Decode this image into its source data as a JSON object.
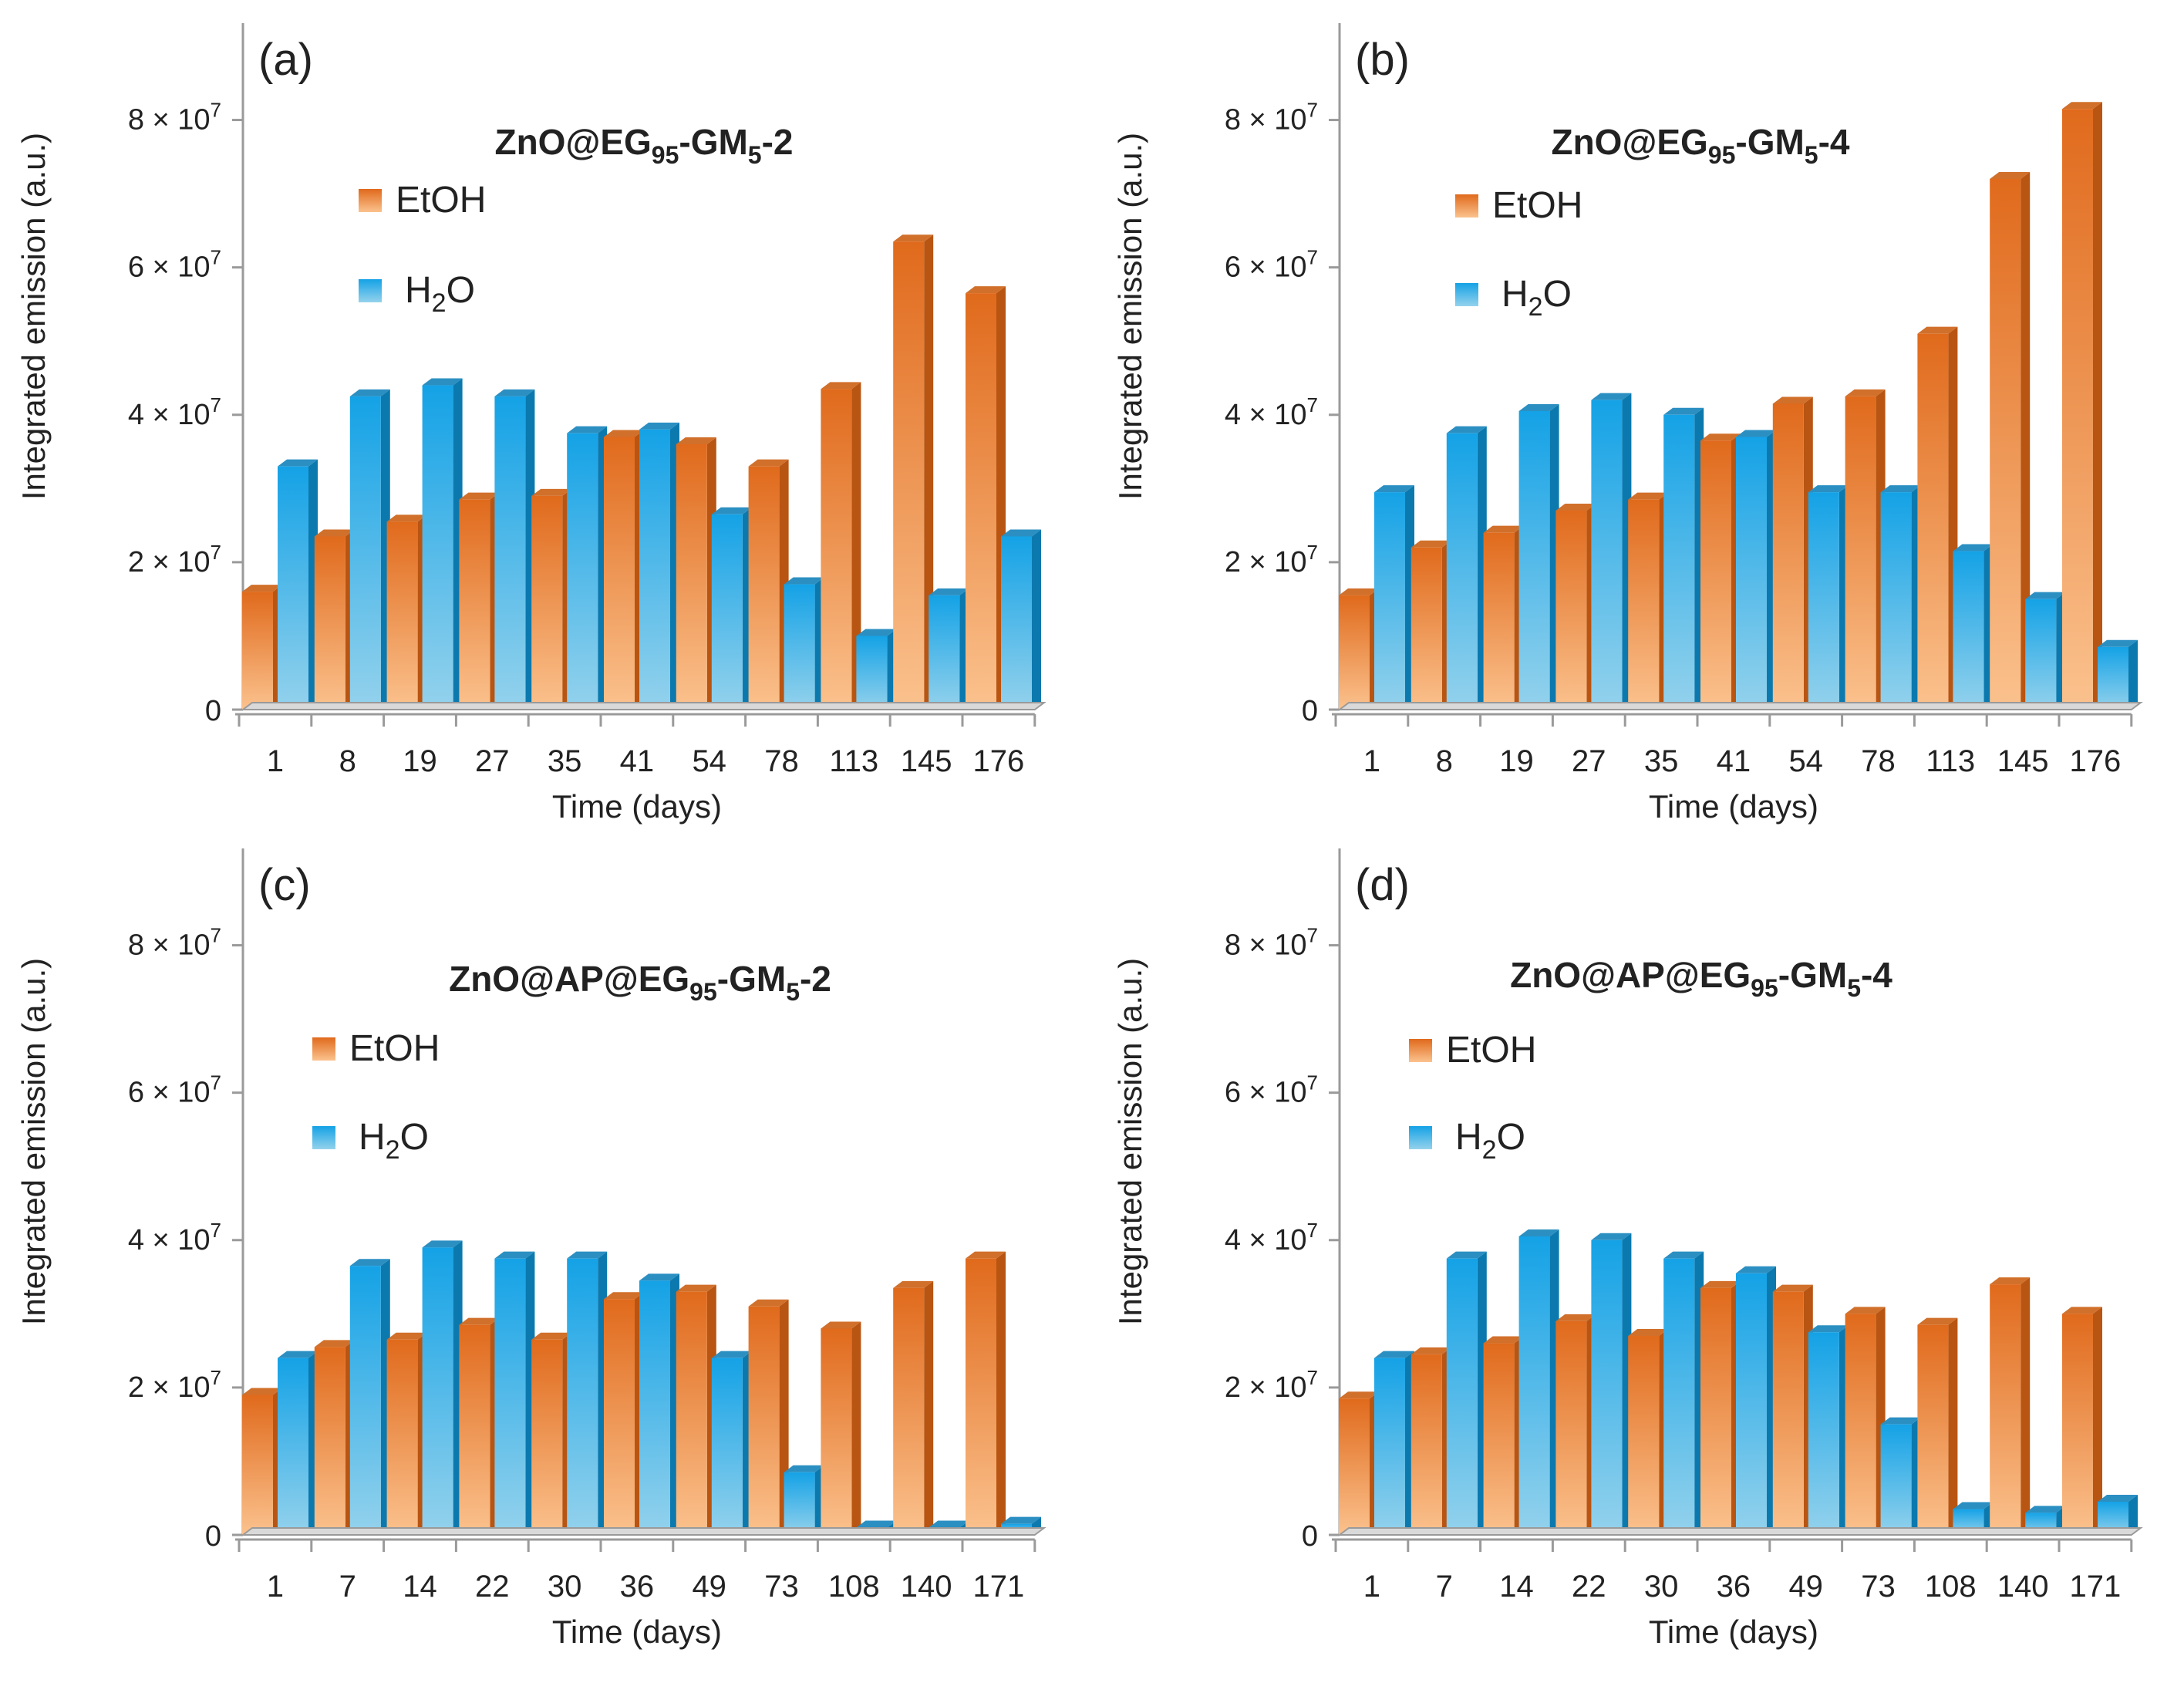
{
  "colors": {
    "etoh_top": "#e06a1c",
    "etoh_bottom": "#fbc28e",
    "etoh_side": "#b85512",
    "etoh_cap": "#d1702b",
    "h2o_top": "#14a2e6",
    "h2o_bottom": "#94d2ec",
    "h2o_side": "#0c79ae",
    "h2o_cap": "#2b8fc2",
    "axis": "#9a9a9a"
  },
  "chart_data": [
    {
      "type": "bar",
      "panel_label": "(a)",
      "title": {
        "prefix": "ZnO@EG",
        "sub1": "95",
        "mid": "-GM",
        "sub2": "5",
        "suffix": "-2"
      },
      "xlabel": "Time (days)",
      "ylabel": "Integrated emission (a.u.)",
      "ylim": [
        0,
        90000000
      ],
      "yticks": [
        {
          "value": 0,
          "label": "0"
        },
        {
          "value": 20000000,
          "coef": "2 × 10",
          "exp": "7"
        },
        {
          "value": 40000000,
          "coef": "4 × 10",
          "exp": "7"
        },
        {
          "value": 60000000,
          "coef": "6 × 10",
          "exp": "7"
        },
        {
          "value": 80000000,
          "coef": "8 × 10",
          "exp": "7"
        }
      ],
      "legend": {
        "etoh": "EtOH",
        "h2o_base": "H",
        "h2o_sub": "2",
        "h2o_tail": "O"
      },
      "categories": [
        "1",
        "8",
        "19",
        "27",
        "35",
        "41",
        "54",
        "78",
        "113",
        "145",
        "176"
      ],
      "series": [
        {
          "name": "EtOH",
          "values": [
            16000000,
            23500000,
            25500000,
            28500000,
            29000000,
            37000000,
            36000000,
            33000000,
            43500000,
            63500000,
            56500000
          ]
        },
        {
          "name": "H2O",
          "values": [
            33000000,
            42500000,
            44000000,
            42500000,
            37500000,
            38000000,
            26500000,
            17000000,
            10000000,
            15500000,
            23500000
          ]
        }
      ]
    },
    {
      "type": "bar",
      "panel_label": "(b)",
      "title": {
        "prefix": "ZnO@EG",
        "sub1": "95",
        "mid": "-GM",
        "sub2": "5",
        "suffix": "-4"
      },
      "xlabel": "Time (days)",
      "ylabel": "Integrated emission (a.u.)",
      "ylim": [
        0,
        90000000
      ],
      "yticks": [
        {
          "value": 0,
          "label": "0"
        },
        {
          "value": 20000000,
          "coef": "2 × 10",
          "exp": "7"
        },
        {
          "value": 40000000,
          "coef": "4 × 10",
          "exp": "7"
        },
        {
          "value": 60000000,
          "coef": "6 × 10",
          "exp": "7"
        },
        {
          "value": 80000000,
          "coef": "8 × 10",
          "exp": "7"
        }
      ],
      "legend": {
        "etoh": "EtOH",
        "h2o_base": "H",
        "h2o_sub": "2",
        "h2o_tail": "O"
      },
      "categories": [
        "1",
        "8",
        "19",
        "27",
        "35",
        "41",
        "54",
        "78",
        "113",
        "145",
        "176"
      ],
      "series": [
        {
          "name": "EtOH",
          "values": [
            15500000,
            22000000,
            24000000,
            27000000,
            28500000,
            36500000,
            41500000,
            42500000,
            51000000,
            72000000,
            81500000
          ]
        },
        {
          "name": "H2O",
          "values": [
            29500000,
            37500000,
            40500000,
            42000000,
            40000000,
            37000000,
            29500000,
            29500000,
            21500000,
            15000000,
            8500000
          ]
        }
      ]
    },
    {
      "type": "bar",
      "panel_label": "(c)",
      "title": {
        "prefix": "ZnO@AP@EG",
        "sub1": "95",
        "mid": "-GM",
        "sub2": "5",
        "suffix": "-2"
      },
      "xlabel": "Time (days)",
      "ylabel": "Integrated emission (a.u.)",
      "ylim": [
        0,
        90000000
      ],
      "yticks": [
        {
          "value": 0,
          "label": "0"
        },
        {
          "value": 20000000,
          "coef": "2 × 10",
          "exp": "7"
        },
        {
          "value": 40000000,
          "coef": "4 × 10",
          "exp": "7"
        },
        {
          "value": 60000000,
          "coef": "6 × 10",
          "exp": "7"
        },
        {
          "value": 80000000,
          "coef": "8 × 10",
          "exp": "7"
        }
      ],
      "legend": {
        "etoh": "EtOH",
        "h2o_base": "H",
        "h2o_sub": "2",
        "h2o_tail": "O"
      },
      "categories": [
        "1",
        "7",
        "14",
        "22",
        "30",
        "36",
        "49",
        "73",
        "108",
        "140",
        "171"
      ],
      "series": [
        {
          "name": "EtOH",
          "values": [
            19000000,
            25500000,
            26500000,
            28500000,
            26500000,
            32000000,
            33000000,
            31000000,
            28000000,
            33500000,
            37500000
          ]
        },
        {
          "name": "H2O",
          "values": [
            24000000,
            36500000,
            39000000,
            37500000,
            37500000,
            34500000,
            24000000,
            8500000,
            1000000,
            1000000,
            1500000
          ]
        }
      ]
    },
    {
      "type": "bar",
      "panel_label": "(d)",
      "title": {
        "prefix": "ZnO@AP@EG",
        "sub1": "95",
        "mid": "-GM",
        "sub2": "5",
        "suffix": "-4"
      },
      "xlabel": "Time (days)",
      "ylabel": "Integrated emission (a.u.)",
      "ylim": [
        0,
        90000000
      ],
      "yticks": [
        {
          "value": 0,
          "label": "0"
        },
        {
          "value": 20000000,
          "coef": "2 × 10",
          "exp": "7"
        },
        {
          "value": 40000000,
          "coef": "4 × 10",
          "exp": "7"
        },
        {
          "value": 60000000,
          "coef": "6 × 10",
          "exp": "7"
        },
        {
          "value": 80000000,
          "coef": "8 × 10",
          "exp": "7"
        }
      ],
      "legend": {
        "etoh": "EtOH",
        "h2o_base": "H",
        "h2o_sub": "2",
        "h2o_tail": "O"
      },
      "categories": [
        "1",
        "7",
        "14",
        "22",
        "30",
        "36",
        "49",
        "73",
        "108",
        "140",
        "171"
      ],
      "series": [
        {
          "name": "EtOH",
          "values": [
            18500000,
            24500000,
            26000000,
            29000000,
            27000000,
            33500000,
            33000000,
            30000000,
            28500000,
            34000000,
            30000000
          ]
        },
        {
          "name": "H2O",
          "values": [
            24000000,
            37500000,
            40500000,
            40000000,
            37500000,
            35500000,
            27500000,
            15000000,
            3500000,
            3000000,
            4500000
          ]
        }
      ]
    }
  ]
}
